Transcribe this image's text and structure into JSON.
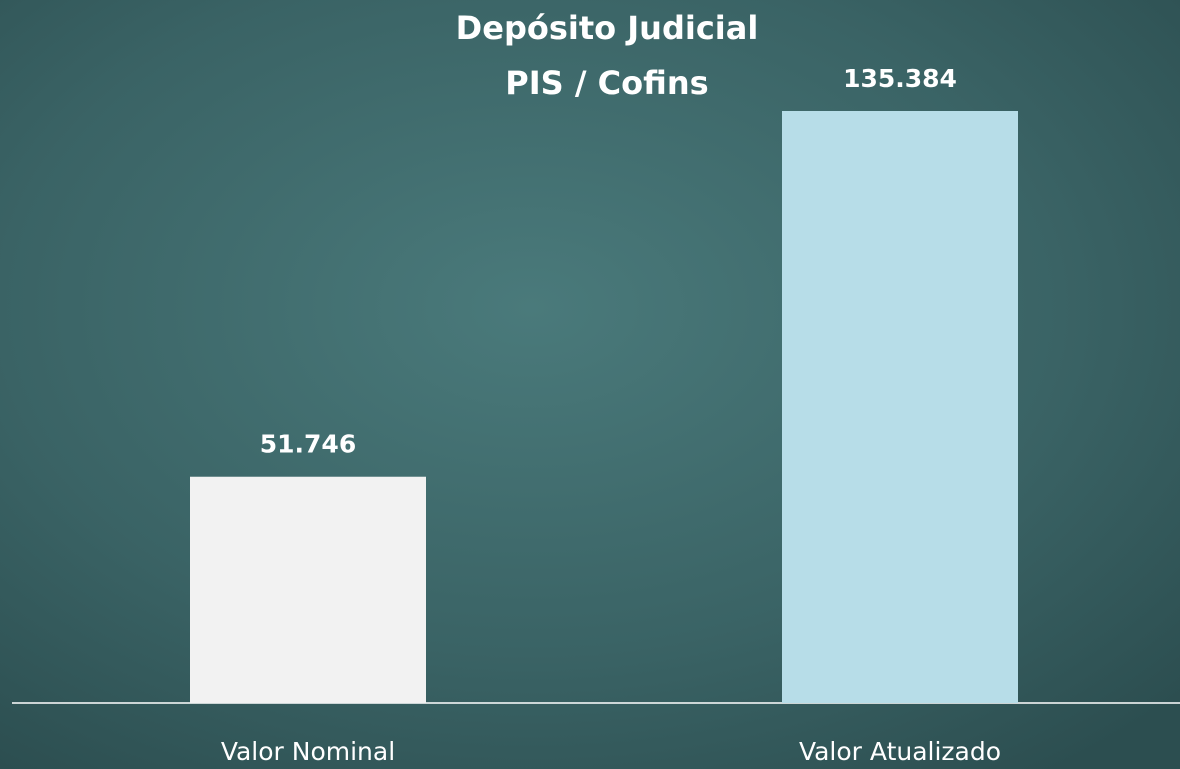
{
  "chart_data": {
    "type": "bar",
    "title": [
      "Depósito Judicial",
      "PIS / Cofins"
    ],
    "categories": [
      "Valor Nominal",
      "Valor Atualizado"
    ],
    "values": [
      51746,
      135384
    ],
    "value_labels": [
      "51.746",
      "135.384"
    ],
    "colors": [
      "#f2f2f2",
      "#b7dde8"
    ]
  }
}
